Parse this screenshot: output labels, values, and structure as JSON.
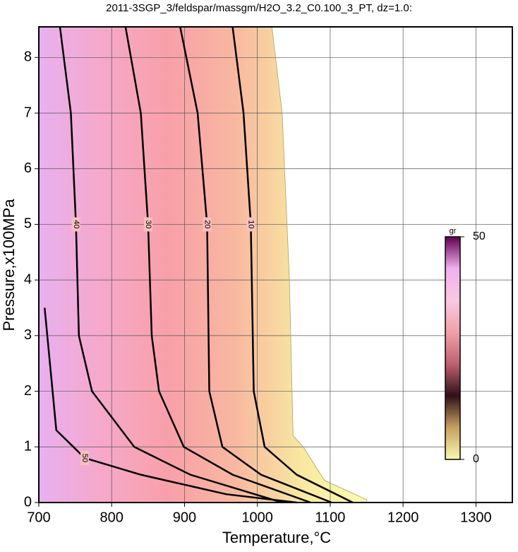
{
  "chart_data": {
    "type": "contour",
    "title": "2011-3SGP_3/feldspar/massgm/H2O_3.2_C0.100_3_PT, dz=1.0:",
    "x_label": "Temperature,°C",
    "y_label": "Pressure,x100MPa",
    "xlim": [
      700,
      1350
    ],
    "ylim": [
      0,
      8.55
    ],
    "xticks": [
      700,
      800,
      900,
      1000,
      1100,
      1200,
      1300
    ],
    "yticks": [
      0,
      1,
      2,
      3,
      4,
      5,
      6,
      7,
      8
    ],
    "grid": true,
    "colormap": [
      "#e8b0f0",
      "#f6a8c8",
      "#f8a0a8",
      "#f8b8a0",
      "#f8e8a0",
      "#fcfcb0"
    ],
    "field": {
      "x": [
        700,
        700,
        1020,
        1034,
        1044,
        1049,
        1063,
        1092,
        1150,
        1150
      ],
      "y": [
        0,
        8.55,
        8.55,
        7,
        4,
        1.2,
        1,
        0.4,
        0.05,
        0
      ]
    },
    "contours": [
      {
        "level": 10,
        "x": [
          966,
          981,
          991,
          995,
          1010,
          1054,
          1131
        ],
        "y": [
          8.55,
          7,
          5,
          2,
          1,
          0.5,
          0
        ]
      },
      {
        "level": 20,
        "x": [
          894,
          918,
          931,
          934,
          952,
          1005,
          1102
        ],
        "y": [
          8.55,
          7,
          5,
          2,
          1,
          0.5,
          0
        ]
      },
      {
        "level": 30,
        "x": [
          819,
          840,
          850,
          855,
          865,
          899,
          966,
          1073
        ],
        "y": [
          8.55,
          7,
          5,
          3,
          2,
          1,
          0.5,
          0
        ]
      },
      {
        "level": 40,
        "x": [
          729,
          744,
          751,
          755,
          773,
          831,
          908,
          1034
        ],
        "y": [
          8.55,
          7,
          5,
          3,
          2,
          1,
          0.5,
          0
        ]
      },
      {
        "level": 50,
        "x": [
          708,
          724,
          763,
          840,
          957,
          1054
        ],
        "y": [
          3.5,
          1.3,
          0.8,
          0.5,
          0.15,
          0
        ]
      }
    ],
    "colorbar": {
      "label": "gr",
      "lim": [
        0,
        50
      ],
      "ticks": [
        0,
        50
      ],
      "colors": [
        "#f8f8b0",
        "#c8a060",
        "#301018",
        "#c06070",
        "#f0a0a8",
        "#f8c8e0",
        "#f0b0f0",
        "#600050"
      ]
    }
  }
}
